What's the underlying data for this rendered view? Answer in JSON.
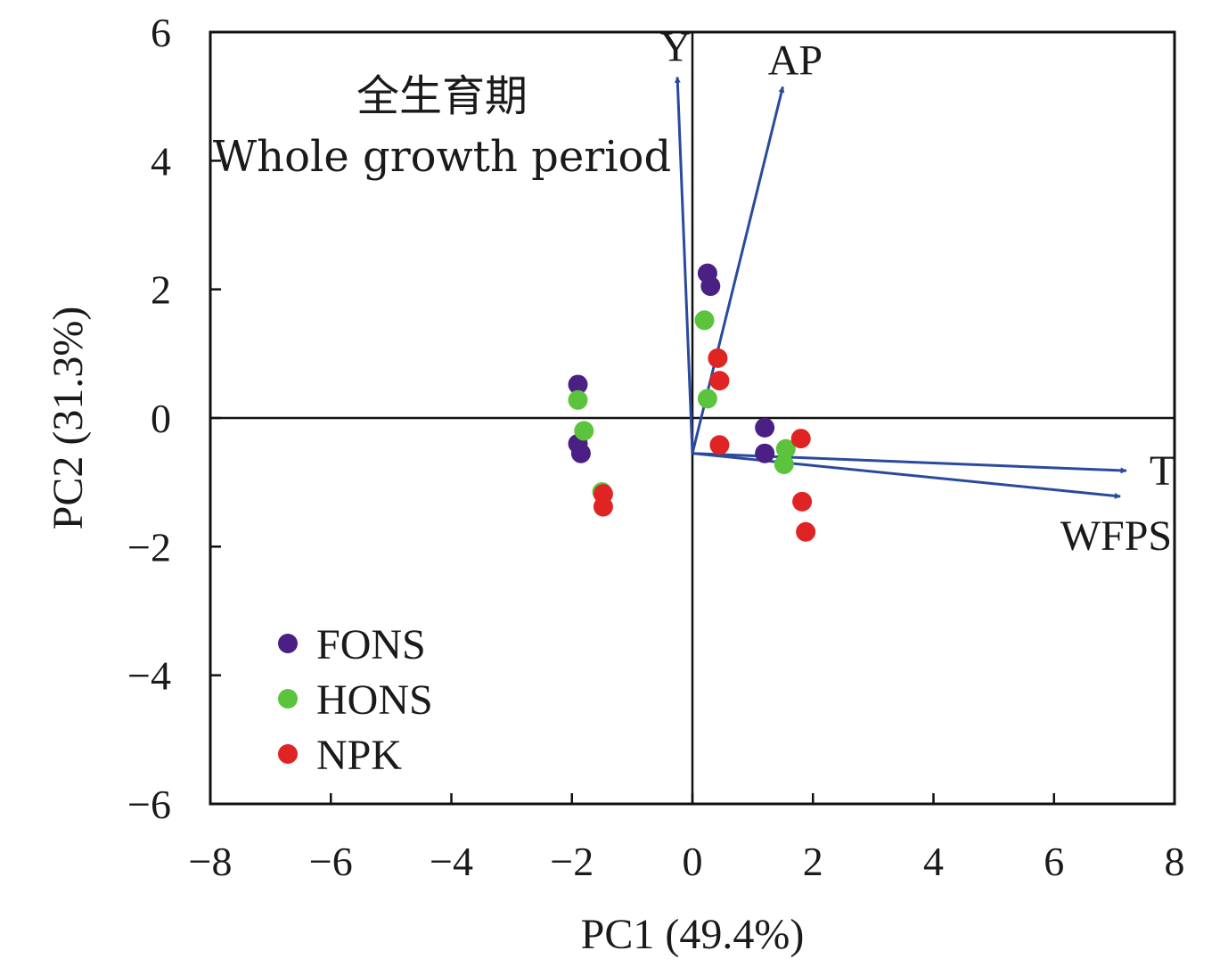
{
  "chart_data": {
    "type": "scatter",
    "xlabel": "PC1 (49.4%)",
    "ylabel": "PC2 (31.3%)",
    "xlim": [
      -8,
      8
    ],
    "ylim": [
      -6,
      6
    ],
    "x_ticks": [
      -8,
      -6,
      -4,
      -2,
      0,
      2,
      4,
      6,
      8
    ],
    "y_ticks": [
      -6,
      -4,
      -2,
      0,
      2,
      4,
      6
    ],
    "x_tick_labels": [
      "−8",
      "−6",
      "−4",
      "−2",
      "0",
      "2",
      "4",
      "6",
      "8"
    ],
    "y_tick_labels": [
      "−6",
      "−4",
      "−2",
      "0",
      "2",
      "4",
      "6"
    ],
    "grid": false,
    "annotation": {
      "line1": "全生育期",
      "line2": "Whole growth period"
    },
    "legend_position": "bottom-left",
    "series": [
      {
        "name": "FONS",
        "color": "#4a2084",
        "points": [
          {
            "x": 0.25,
            "y": 2.25
          },
          {
            "x": 0.3,
            "y": 2.05
          },
          {
            "x": -1.9,
            "y": 0.52
          },
          {
            "x": -1.9,
            "y": -0.4
          },
          {
            "x": -1.85,
            "y": -0.55
          },
          {
            "x": 1.2,
            "y": -0.15
          },
          {
            "x": 1.2,
            "y": -0.55
          }
        ]
      },
      {
        "name": "HONS",
        "color": "#5cc43c",
        "points": [
          {
            "x": 0.2,
            "y": 1.52
          },
          {
            "x": 0.25,
            "y": 0.3
          },
          {
            "x": -1.9,
            "y": 0.28
          },
          {
            "x": -1.8,
            "y": -0.2
          },
          {
            "x": -1.5,
            "y": -1.15
          },
          {
            "x": 1.55,
            "y": -0.48
          },
          {
            "x": 1.52,
            "y": -0.72
          }
        ]
      },
      {
        "name": "NPK",
        "color": "#e02424",
        "points": [
          {
            "x": 0.42,
            "y": 0.93
          },
          {
            "x": 0.45,
            "y": 0.58
          },
          {
            "x": 0.45,
            "y": -0.42
          },
          {
            "x": -1.48,
            "y": -1.18
          },
          {
            "x": -1.48,
            "y": -1.38
          },
          {
            "x": 1.8,
            "y": -0.32
          },
          {
            "x": 1.82,
            "y": -1.3
          },
          {
            "x": 1.88,
            "y": -1.77
          }
        ]
      }
    ],
    "vectors": [
      {
        "label": "Y",
        "from": [
          0,
          -0.55
        ],
        "to": [
          -0.25,
          5.3
        ]
      },
      {
        "label": "AP",
        "from": [
          0,
          -0.55
        ],
        "to": [
          1.5,
          5.15
        ]
      },
      {
        "label": "T",
        "from": [
          0,
          -0.55
        ],
        "to": [
          7.2,
          -0.82
        ]
      },
      {
        "label": "WFPS",
        "from": [
          0,
          -0.55
        ],
        "to": [
          7.1,
          -1.22
        ]
      }
    ],
    "vector_color": "#2a4a9e"
  }
}
